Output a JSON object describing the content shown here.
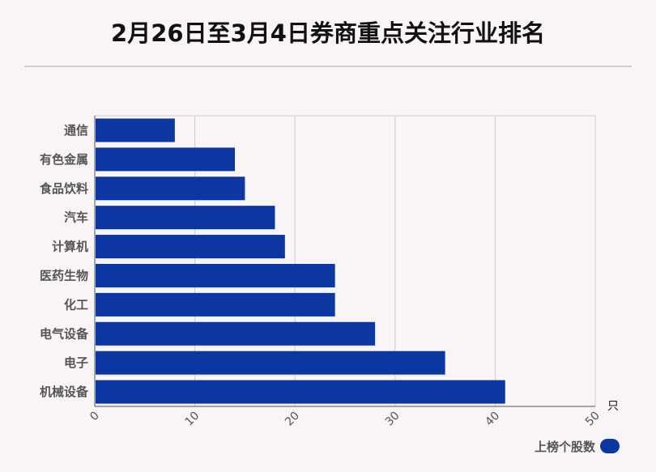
{
  "title": "2月26日至3月4日券商重点关注行业排名",
  "chart_data": {
    "type": "bar",
    "orientation": "horizontal",
    "categories": [
      "通信",
      "有色金属",
      "食品饮料",
      "汽车",
      "计算机",
      "医药生物",
      "化工",
      "电气设备",
      "电子",
      "机械设备"
    ],
    "series": [
      {
        "name": "上榜个股数",
        "values": [
          8,
          14,
          15,
          18,
          19,
          24,
          24,
          28,
          35,
          41
        ]
      }
    ],
    "xlim": [
      0,
      50
    ],
    "xticks": [
      "0",
      "10",
      "20",
      "30",
      "40",
      "50"
    ],
    "x_unit": "只",
    "grid": true,
    "legend_position": "bottom-right",
    "bar_color": "#0d37a0"
  }
}
